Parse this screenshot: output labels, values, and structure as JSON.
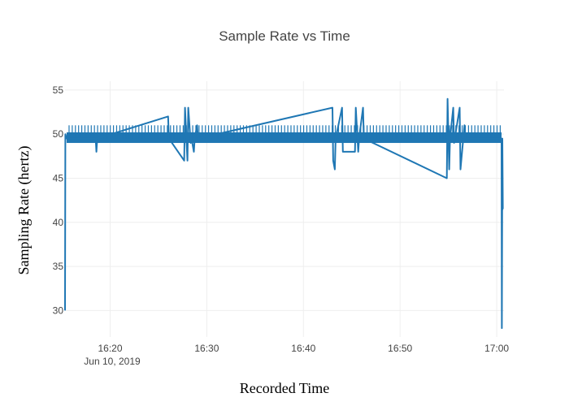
{
  "chart_data": {
    "type": "line",
    "title": "Sample Rate vs Time",
    "xlabel": "Recorded Time",
    "ylabel": "Sampling Rate (hertz)",
    "x_tick_labels": [
      "16:20",
      "16:30",
      "16:40",
      "16:50",
      "17:00"
    ],
    "x_date_label": "Jun 10, 2019",
    "x_ticks": [
      "2019-06-10 16:20",
      "2019-06-10 16:30",
      "2019-06-10 16:40",
      "2019-06-10 16:50",
      "2019-06-10 17:00"
    ],
    "xlim": [
      "2019-06-10 16:15:20",
      "2019-06-10 17:00:45"
    ],
    "y_ticks": [
      30,
      35,
      40,
      45,
      50,
      55
    ],
    "ylim": [
      27,
      56
    ],
    "grid": true,
    "legend": "none",
    "series": [
      {
        "color": "#1f77b4",
        "x": [
          "2019-06-10 16:15:20",
          "2019-06-10 16:15:22",
          "2019-06-10 16:15:30",
          "2019-06-10 16:18:30",
          "2019-06-10 16:18:35",
          "2019-06-10 16:18:40",
          "2019-06-10 16:26:00",
          "2019-06-10 16:26:05",
          "2019-06-10 16:27:40",
          "2019-06-10 16:27:45",
          "2019-06-10 16:28:00",
          "2019-06-10 16:28:05",
          "2019-06-10 16:28:20",
          "2019-06-10 16:28:25",
          "2019-06-10 16:28:40",
          "2019-06-10 16:28:45",
          "2019-06-10 16:29:00",
          "2019-06-10 16:29:05",
          "2019-06-10 16:43:00",
          "2019-06-10 16:43:05",
          "2019-06-10 16:43:15",
          "2019-06-10 16:43:20",
          "2019-06-10 16:44:00",
          "2019-06-10 16:44:05",
          "2019-06-10 16:45:20",
          "2019-06-10 16:45:25",
          "2019-06-10 16:45:40",
          "2019-06-10 16:45:45",
          "2019-06-10 16:46:10",
          "2019-06-10 16:46:15",
          "2019-06-10 16:54:50",
          "2019-06-10 16:54:55",
          "2019-06-10 16:55:05",
          "2019-06-10 16:55:10",
          "2019-06-10 16:55:30",
          "2019-06-10 16:55:35",
          "2019-06-10 16:56:10",
          "2019-06-10 16:56:15",
          "2019-06-10 16:56:40",
          "2019-06-10 16:56:45",
          "2019-06-10 17:00:30",
          "2019-06-10 17:00:32",
          "2019-06-10 17:00:35",
          "2019-06-10 17:00:38",
          "2019-06-10 17:00:40"
        ],
        "y": [
          30,
          50,
          49.5,
          49.5,
          48,
          49.5,
          52,
          49.5,
          47,
          53,
          47,
          53,
          49,
          49.5,
          48,
          49.5,
          51,
          49.5,
          53,
          47,
          46,
          49.5,
          53,
          48,
          48,
          53,
          48,
          49.5,
          53,
          49.5,
          45,
          54,
          46,
          49.5,
          53,
          49,
          53,
          46,
          51,
          49.5,
          49.5,
          28,
          49.5,
          41.5,
          41.5
        ]
      }
    ]
  }
}
